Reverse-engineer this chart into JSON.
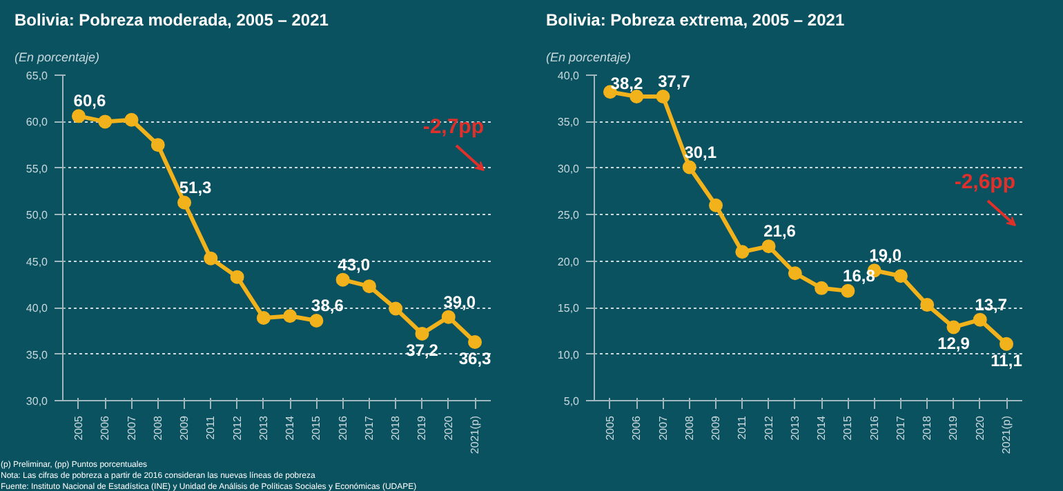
{
  "chart_data": [
    {
      "type": "line",
      "title": "Bolivia: Pobreza moderada, 2005 – 2021",
      "subtitle": "(En porcentaje)",
      "categories": [
        "2005",
        "2006",
        "2007",
        "2008",
        "2009",
        "2011",
        "2012",
        "2013",
        "2014",
        "2015",
        "2016",
        "2017",
        "2018",
        "2019",
        "2020",
        "2021(p)"
      ],
      "series": [
        {
          "color": "#f2b21b",
          "values": [
            60.6,
            60.0,
            60.2,
            57.5,
            51.3,
            45.3,
            43.3,
            38.9,
            39.1,
            38.6,
            null,
            null,
            null,
            null,
            null,
            null
          ],
          "value_labels": [
            "60,6",
            null,
            null,
            null,
            "51,3",
            null,
            null,
            null,
            null,
            "38,6",
            null,
            null,
            null,
            null,
            null,
            null
          ]
        },
        {
          "color": "#f2b21b",
          "values": [
            null,
            null,
            null,
            null,
            null,
            null,
            null,
            null,
            null,
            null,
            43.0,
            42.3,
            39.9,
            37.2,
            39.0,
            36.3
          ],
          "value_labels": [
            null,
            null,
            null,
            null,
            null,
            null,
            null,
            null,
            null,
            null,
            "43,0",
            null,
            null,
            "37,2",
            "39,0",
            "36,3"
          ]
        }
      ],
      "ylim": [
        30,
        65
      ],
      "yticks": [
        {
          "value": 30,
          "label": "30,0"
        },
        {
          "value": 35,
          "label": "35,0"
        },
        {
          "value": 40,
          "label": "40,0"
        },
        {
          "value": 45,
          "label": "45,0"
        },
        {
          "value": 50,
          "label": "50,0"
        },
        {
          "value": 55,
          "label": "55,0"
        },
        {
          "value": 60,
          "label": "60,0"
        },
        {
          "value": 65,
          "label": "65,0"
        }
      ],
      "grid": "y",
      "marker": "circle",
      "line_style": "solid",
      "annotations": [
        "-2,7pp",
        "(p) Preliminar, (pp) Puntos porcentuales",
        "Nota: Las cifras de pobreza a partir de 2016 consideran las nuevas líneas de pobreza",
        "Fuente: Instituto Nacional de Estadística (INE) y Unidad de Análisis de Políticas Sociales y Económicas (UDAPE)"
      ]
    },
    {
      "type": "line",
      "title": "Bolivia: Pobreza extrema, 2005 – 2021",
      "subtitle": "(En porcentaje)",
      "categories": [
        "2005",
        "2006",
        "2007",
        "2008",
        "2009",
        "2011",
        "2012",
        "2013",
        "2014",
        "2015",
        "2016",
        "2017",
        "2018",
        "2019",
        "2020",
        "2021(p)"
      ],
      "series": [
        {
          "color": "#f2b21b",
          "values": [
            38.2,
            37.7,
            37.7,
            30.1,
            26.0,
            21.0,
            21.6,
            18.7,
            17.1,
            16.8,
            null,
            null,
            null,
            null,
            null,
            null
          ],
          "value_labels": [
            "38,2",
            null,
            "37,7",
            "30,1",
            null,
            null,
            "21,6",
            null,
            null,
            "16,8",
            null,
            null,
            null,
            null,
            null,
            null
          ]
        },
        {
          "color": "#f2b21b",
          "values": [
            null,
            null,
            null,
            null,
            null,
            null,
            null,
            null,
            null,
            null,
            19.0,
            18.4,
            15.3,
            12.9,
            13.7,
            11.1
          ],
          "value_labels": [
            null,
            null,
            null,
            null,
            null,
            null,
            null,
            null,
            null,
            null,
            "19,0",
            null,
            null,
            "12,9",
            "13,7",
            "11,1"
          ]
        }
      ],
      "ylim": [
        5,
        40
      ],
      "yticks": [
        {
          "value": 5,
          "label": "5,0"
        },
        {
          "value": 10,
          "label": "10,0"
        },
        {
          "value": 15,
          "label": "15,0"
        },
        {
          "value": 20,
          "label": "20,0"
        },
        {
          "value": 25,
          "label": "25,0"
        },
        {
          "value": 30,
          "label": "30,0"
        },
        {
          "value": 35,
          "label": "35,0"
        },
        {
          "value": 40,
          "label": "40,0"
        }
      ],
      "grid": "y",
      "marker": "circle",
      "line_style": "solid",
      "annotations": [
        "-2,6pp"
      ]
    }
  ]
}
